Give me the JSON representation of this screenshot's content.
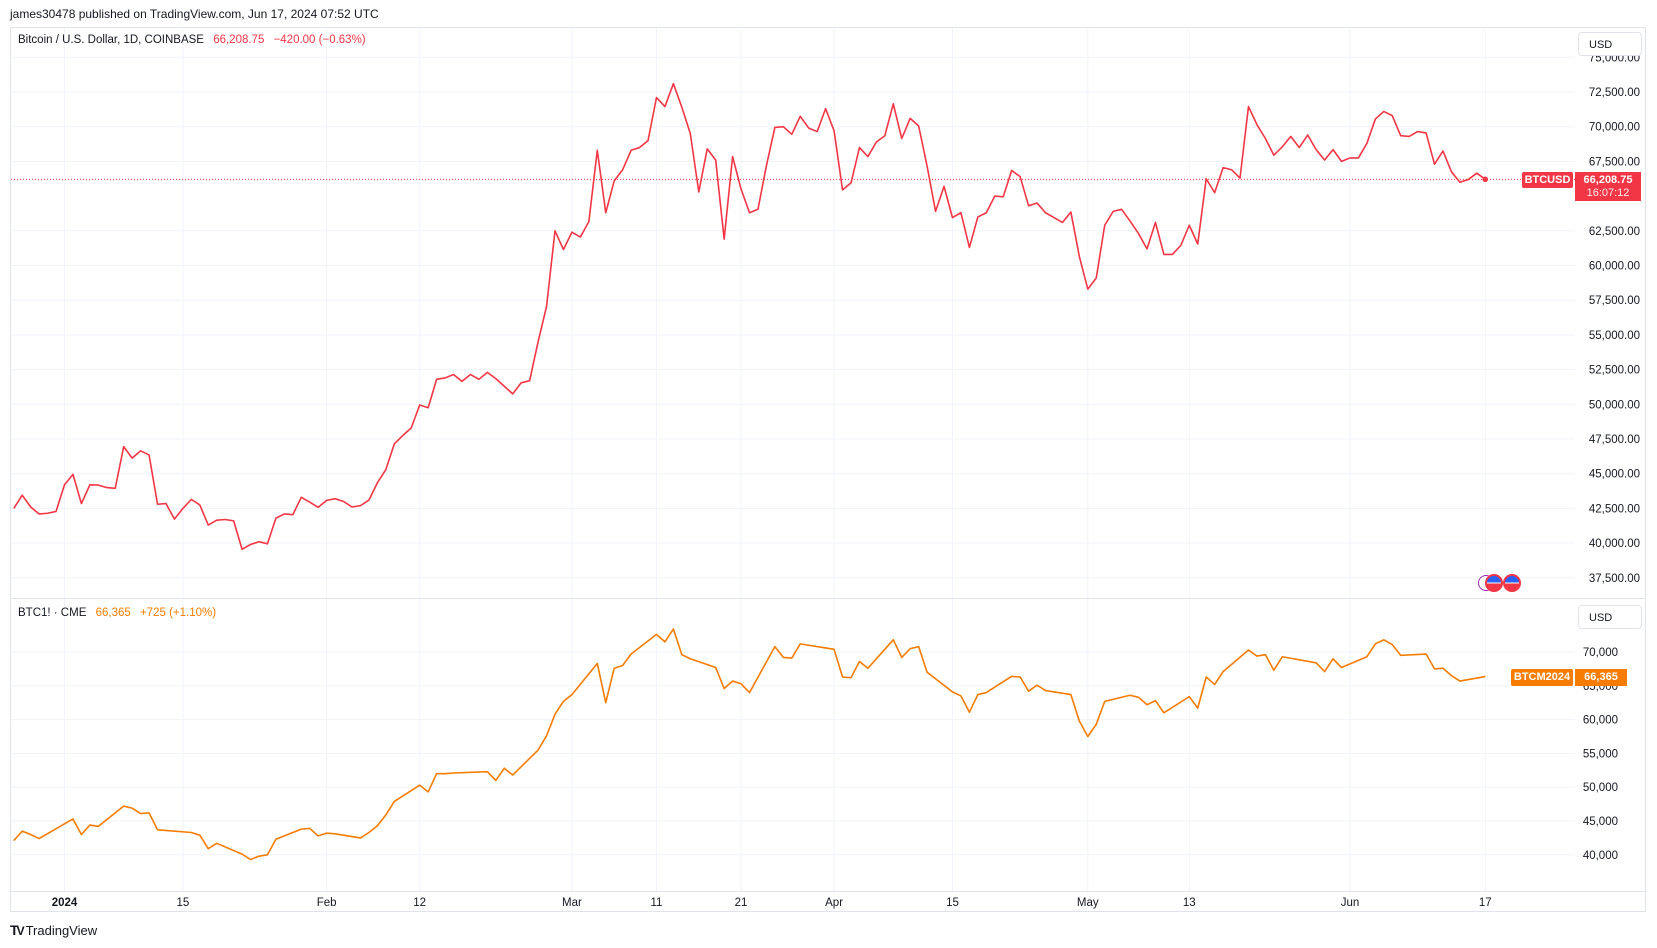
{
  "header": {
    "published": "james30478 published on TradingView.com, Jun 17, 2024 07:52 UTC"
  },
  "colors": {
    "btcusd": "#f23645",
    "cme": "#f57c00",
    "grid": "#f0f3fa",
    "border": "#e0e3eb"
  },
  "top_pane": {
    "symbol": "Bitcoin / U.S. Dollar, 1D, COINBASE",
    "price": "66,208.75",
    "change": "−420.00 (−0.63%)",
    "currency_button": "USD",
    "price_tag_symbol": "BTCUSD",
    "price_tag_value": "66,208.75",
    "price_tag_countdown": "16:07:12",
    "event_icons": [
      "economic-event-icon",
      "us-flag-icon",
      "us-flag-icon"
    ]
  },
  "bottom_pane": {
    "symbol": "BTC1! · CME",
    "price": "66,365",
    "change": "+725 (+1.10%)",
    "currency_button": "USD",
    "price_tag_symbol": "BTCM2024",
    "price_tag_value": "66,365"
  },
  "footer": {
    "logo_mark": "TV",
    "brand": "TradingView"
  },
  "chart_data": [
    {
      "type": "line",
      "series": [
        {
          "name": "BTCUSD",
          "color": "#f23645"
        }
      ],
      "ylim": [
        37500,
        75000
      ],
      "y_ticks": [
        "75,000.00",
        "72,500.00",
        "70,000.00",
        "67,500.00",
        "62,500.00",
        "60,000.00",
        "57,500.00",
        "55,000.00",
        "52,500.00",
        "50,000.00",
        "47,500.00",
        "45,000.00",
        "42,500.00",
        "40,000.00",
        "37,500.00"
      ],
      "y_tick_values": [
        75000,
        72500,
        70000,
        67500,
        62500,
        60000,
        57500,
        55000,
        52500,
        50000,
        47500,
        45000,
        42500,
        40000,
        37500
      ],
      "start": "2023-12-26",
      "values": [
        42500,
        43450,
        42600,
        42100,
        42150,
        42280,
        44200,
        44950,
        42850,
        44200,
        44180,
        44000,
        43950,
        46950,
        46120,
        46650,
        46350,
        42800,
        42850,
        41730,
        42500,
        43150,
        42750,
        41300,
        41650,
        41700,
        41600,
        39550,
        39900,
        40100,
        39950,
        41800,
        42100,
        42050,
        43300,
        42950,
        42580,
        43080,
        43200,
        43000,
        42600,
        42700,
        43100,
        44350,
        45300,
        47150,
        47750,
        48300,
        49950,
        49750,
        51800,
        51900,
        52150,
        51650,
        52150,
        51800,
        52300,
        51850,
        51300,
        50750,
        51550,
        51700,
        54500,
        57050,
        62500,
        61150,
        62400,
        62050,
        63150,
        68300,
        63800,
        66100,
        66900,
        68300,
        68500,
        69000,
        72100,
        71450,
        73100,
        71400,
        69500,
        65300,
        68400,
        67600,
        61900,
        67850,
        65500,
        63800,
        64050,
        67200,
        69950,
        70000,
        69450,
        70750,
        69900,
        69650,
        71300,
        69700,
        65450,
        65950,
        68500,
        67850,
        68900,
        69350,
        71650,
        69150,
        70600,
        70050,
        67150,
        63900,
        65700,
        63450,
        63800,
        61300,
        63500,
        63800,
        65000,
        64950,
        66850,
        66400,
        64300,
        64500,
        63800,
        63450,
        63100,
        63850,
        60650,
        58300,
        59100,
        62900,
        63900,
        64050,
        63200,
        62300,
        61200,
        63100,
        60800,
        60800,
        61450,
        62900,
        61550,
        66250,
        65250,
        67050,
        66900,
        66300,
        71450,
        70150,
        69150,
        67950,
        68550,
        69300,
        68500,
        69400,
        68350,
        67600,
        68350,
        67500,
        67750,
        67750,
        68800,
        70550,
        71100,
        70800,
        69350,
        69300,
        69650,
        69550,
        67300,
        68250,
        66750,
        66000,
        66200,
        66650,
        66208.75
      ],
      "last_value": 66208.75
    },
    {
      "type": "line",
      "series": [
        {
          "name": "BTC1!",
          "color": "#f57c00"
        }
      ],
      "ylim": [
        37000,
        75000
      ],
      "y_ticks": [
        "70,000",
        "65,000",
        "60,000",
        "55,000",
        "50,000",
        "45,000",
        "40,000"
      ],
      "y_tick_values": [
        70000,
        65000,
        60000,
        55000,
        50000,
        45000,
        40000
      ],
      "points": [
        [
          "2023-12-26",
          42100
        ],
        [
          "2023-12-27",
          43500
        ],
        [
          "2023-12-28",
          43000
        ],
        [
          "2023-12-29",
          42400
        ],
        [
          "2024-01-02",
          45300
        ],
        [
          "2024-01-03",
          43000
        ],
        [
          "2024-01-04",
          44400
        ],
        [
          "2024-01-05",
          44200
        ],
        [
          "2024-01-08",
          47200
        ],
        [
          "2024-01-09",
          46900
        ],
        [
          "2024-01-10",
          46100
        ],
        [
          "2024-01-11",
          46200
        ],
        [
          "2024-01-12",
          43700
        ],
        [
          "2024-01-16",
          43300
        ],
        [
          "2024-01-17",
          42900
        ],
        [
          "2024-01-18",
          40900
        ],
        [
          "2024-01-19",
          41700
        ],
        [
          "2024-01-22",
          40100
        ],
        [
          "2024-01-23",
          39300
        ],
        [
          "2024-01-24",
          39800
        ],
        [
          "2024-01-25",
          40000
        ],
        [
          "2024-01-26",
          42300
        ],
        [
          "2024-01-29",
          43800
        ],
        [
          "2024-01-30",
          43900
        ],
        [
          "2024-01-31",
          42800
        ],
        [
          "2024-02-01",
          43200
        ],
        [
          "2024-02-02",
          43100
        ],
        [
          "2024-02-05",
          42500
        ],
        [
          "2024-02-06",
          43300
        ],
        [
          "2024-02-07",
          44300
        ],
        [
          "2024-02-08",
          45900
        ],
        [
          "2024-02-09",
          47900
        ],
        [
          "2024-02-12",
          50300
        ],
        [
          "2024-02-13",
          49300
        ],
        [
          "2024-02-14",
          52000
        ],
        [
          "2024-02-15",
          52000
        ],
        [
          "2024-02-16",
          52100
        ],
        [
          "2024-02-20",
          52300
        ],
        [
          "2024-02-21",
          51000
        ],
        [
          "2024-02-22",
          52800
        ],
        [
          "2024-02-23",
          51800
        ],
        [
          "2024-02-26",
          55500
        ],
        [
          "2024-02-27",
          57600
        ],
        [
          "2024-02-28",
          60800
        ],
        [
          "2024-02-29",
          62700
        ],
        [
          "2024-03-01",
          63700
        ],
        [
          "2024-03-04",
          68300
        ],
        [
          "2024-03-05",
          62500
        ],
        [
          "2024-03-06",
          67600
        ],
        [
          "2024-03-07",
          68000
        ],
        [
          "2024-03-08",
          69700
        ],
        [
          "2024-03-11",
          72600
        ],
        [
          "2024-03-12",
          71500
        ],
        [
          "2024-03-13",
          73400
        ],
        [
          "2024-03-14",
          69600
        ],
        [
          "2024-03-15",
          69000
        ],
        [
          "2024-03-18",
          67700
        ],
        [
          "2024-03-19",
          64600
        ],
        [
          "2024-03-20",
          65700
        ],
        [
          "2024-03-21",
          65300
        ],
        [
          "2024-03-22",
          64000
        ],
        [
          "2024-03-25",
          70800
        ],
        [
          "2024-03-26",
          69200
        ],
        [
          "2024-03-27",
          69100
        ],
        [
          "2024-03-28",
          71200
        ],
        [
          "2024-04-01",
          70400
        ],
        [
          "2024-04-02",
          66300
        ],
        [
          "2024-04-03",
          66200
        ],
        [
          "2024-04-04",
          68600
        ],
        [
          "2024-04-05",
          67600
        ],
        [
          "2024-04-08",
          71800
        ],
        [
          "2024-04-09",
          69200
        ],
        [
          "2024-04-10",
          70500
        ],
        [
          "2024-04-11",
          70800
        ],
        [
          "2024-04-12",
          67000
        ],
        [
          "2024-04-15",
          64100
        ],
        [
          "2024-04-16",
          63500
        ],
        [
          "2024-04-17",
          61100
        ],
        [
          "2024-04-18",
          63700
        ],
        [
          "2024-04-19",
          64000
        ],
        [
          "2024-04-22",
          66400
        ],
        [
          "2024-04-23",
          66300
        ],
        [
          "2024-04-24",
          64200
        ],
        [
          "2024-04-25",
          65100
        ],
        [
          "2024-04-26",
          64300
        ],
        [
          "2024-04-29",
          63700
        ],
        [
          "2024-04-30",
          59800
        ],
        [
          "2024-05-01",
          57500
        ],
        [
          "2024-05-02",
          59300
        ],
        [
          "2024-05-03",
          62700
        ],
        [
          "2024-05-06",
          63600
        ],
        [
          "2024-05-07",
          63300
        ],
        [
          "2024-05-08",
          62200
        ],
        [
          "2024-05-09",
          62800
        ],
        [
          "2024-05-10",
          61000
        ],
        [
          "2024-05-13",
          63400
        ],
        [
          "2024-05-14",
          61700
        ],
        [
          "2024-05-15",
          66300
        ],
        [
          "2024-05-16",
          65200
        ],
        [
          "2024-05-17",
          67100
        ],
        [
          "2024-05-20",
          70300
        ],
        [
          "2024-05-21",
          69400
        ],
        [
          "2024-05-22",
          69600
        ],
        [
          "2024-05-23",
          67300
        ],
        [
          "2024-05-24",
          69300
        ],
        [
          "2024-05-28",
          68400
        ],
        [
          "2024-05-29",
          67100
        ],
        [
          "2024-05-30",
          69000
        ],
        [
          "2024-05-31",
          67700
        ],
        [
          "2024-06-03",
          69300
        ],
        [
          "2024-06-04",
          71200
        ],
        [
          "2024-06-05",
          71800
        ],
        [
          "2024-06-06",
          71100
        ],
        [
          "2024-06-07",
          69500
        ],
        [
          "2024-06-10",
          69700
        ],
        [
          "2024-06-11",
          67500
        ],
        [
          "2024-06-12",
          67600
        ],
        [
          "2024-06-13",
          66500
        ],
        [
          "2024-06-14",
          65700
        ],
        [
          "2024-06-17",
          66365
        ]
      ]
    }
  ],
  "x_axis": {
    "ticks": [
      {
        "label": "2024",
        "date": "2024-01-01"
      },
      {
        "label": "15",
        "date": "2024-01-15"
      },
      {
        "label": "Feb",
        "date": "2024-02-01"
      },
      {
        "label": "12",
        "date": "2024-02-12"
      },
      {
        "label": "Mar",
        "date": "2024-03-01"
      },
      {
        "label": "11",
        "date": "2024-03-11"
      },
      {
        "label": "21",
        "date": "2024-03-21"
      },
      {
        "label": "Apr",
        "date": "2024-04-01"
      },
      {
        "label": "15",
        "date": "2024-04-15"
      },
      {
        "label": "May",
        "date": "2024-05-01"
      },
      {
        "label": "13",
        "date": "2024-05-13"
      },
      {
        "label": "Jun",
        "date": "2024-06-01"
      },
      {
        "label": "17",
        "date": "2024-06-17"
      }
    ]
  }
}
